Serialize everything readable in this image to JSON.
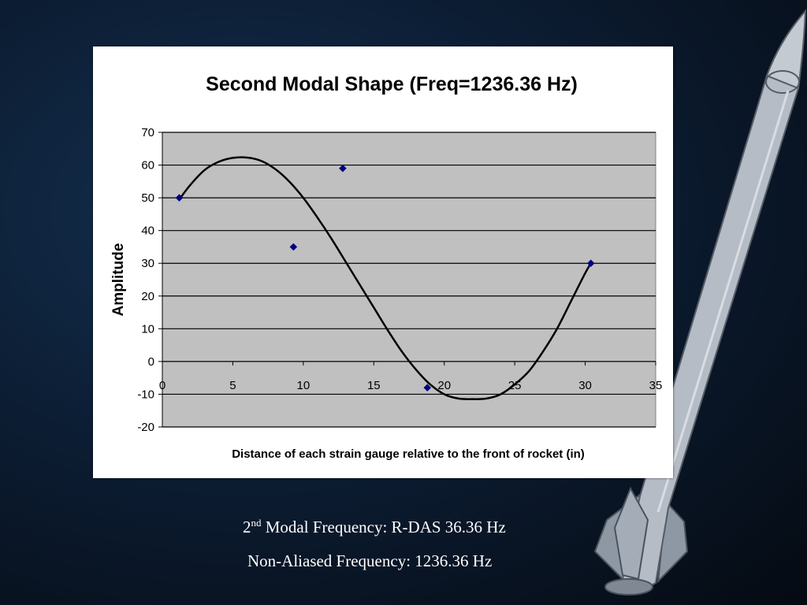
{
  "captions": {
    "line1_ordinal": "2",
    "line1_suffix": "nd",
    "line1_text": " Modal Frequency: R-DAS 36.36 Hz",
    "line2_text": "Non-Aliased Frequency: 1236.36 Hz"
  },
  "colors": {
    "plot_background": "#c0c0c0",
    "curve": "#000000",
    "markers": "#000080",
    "gridlines": "#000000"
  },
  "chart_data": {
    "type": "scatter",
    "title": "Second Modal Shape (Freq=1236.36 Hz)",
    "xlabel": "Distance of each strain gauge relative to the front of rocket (in)",
    "ylabel": "Amplitude",
    "xlim": [
      0,
      35
    ],
    "ylim": [
      -20,
      70
    ],
    "x_ticks": [
      0,
      5,
      10,
      15,
      20,
      25,
      30,
      35
    ],
    "y_ticks": [
      70,
      60,
      50,
      40,
      30,
      20,
      10,
      0,
      -10,
      -20
    ],
    "grid": "horizontal",
    "series": [
      {
        "marker": "diamond",
        "x": [
          1.2,
          9.3,
          12.8,
          18.8,
          30.4
        ],
        "y": [
          50,
          35,
          59,
          -8,
          30
        ]
      }
    ],
    "trendline": {
      "type": "polynomial",
      "x": [
        1.2,
        2,
        3,
        4,
        5,
        6,
        7,
        8,
        9,
        10,
        11,
        12,
        13,
        14,
        15,
        16,
        17,
        18,
        19,
        20,
        21,
        22,
        23,
        24,
        25,
        26,
        27,
        28,
        29,
        30,
        30.4
      ],
      "y": [
        49.5,
        54,
        58.5,
        61,
        62.2,
        62.3,
        61.3,
        58.8,
        55,
        50,
        44,
        37.5,
        30.5,
        23.5,
        16.5,
        9.5,
        3,
        -2.5,
        -7,
        -10,
        -11.3,
        -11.5,
        -11.3,
        -10,
        -7,
        -3,
        3,
        10,
        18.5,
        27,
        30
      ]
    }
  }
}
